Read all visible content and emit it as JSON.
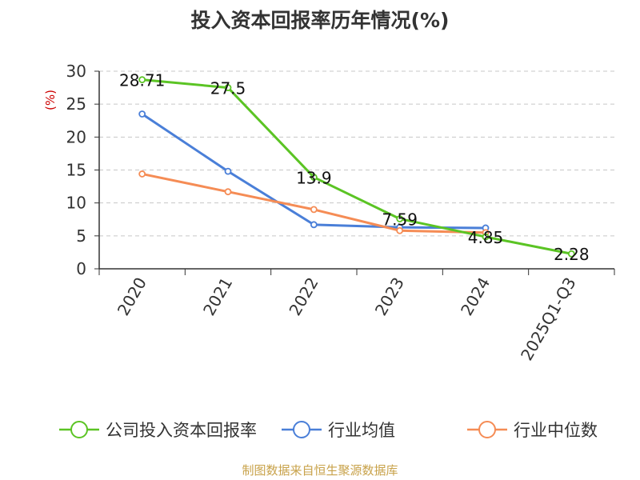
{
  "chart_data": {
    "type": "line",
    "title": "投入资本回报率历年情况(%)",
    "ylabel": "(%)",
    "xlabel": "",
    "categories": [
      "2020",
      "2021",
      "2022",
      "2023",
      "2024",
      "2025Q1-Q3"
    ],
    "ylim": [
      0,
      30
    ],
    "yticks": [
      0,
      5,
      10,
      15,
      20,
      25,
      30
    ],
    "grid": true,
    "legend_position": "bottom",
    "series": [
      {
        "name": "公司投入资本回报率",
        "color": "#5bc424",
        "values": [
          28.71,
          27.5,
          13.9,
          7.59,
          4.85,
          2.28
        ],
        "labels": [
          "28.71",
          "27.5",
          "13.9",
          "7.59",
          "4.85",
          "2.28"
        ]
      },
      {
        "name": "行业均值",
        "color": "#4a7fd8",
        "values": [
          23.5,
          14.8,
          6.7,
          6.3,
          6.2,
          null
        ]
      },
      {
        "name": "行业中位数",
        "color": "#f58c55",
        "values": [
          14.4,
          11.7,
          9.0,
          5.8,
          5.5,
          null
        ]
      }
    ]
  },
  "source": "制图数据来自恒生聚源数据库"
}
